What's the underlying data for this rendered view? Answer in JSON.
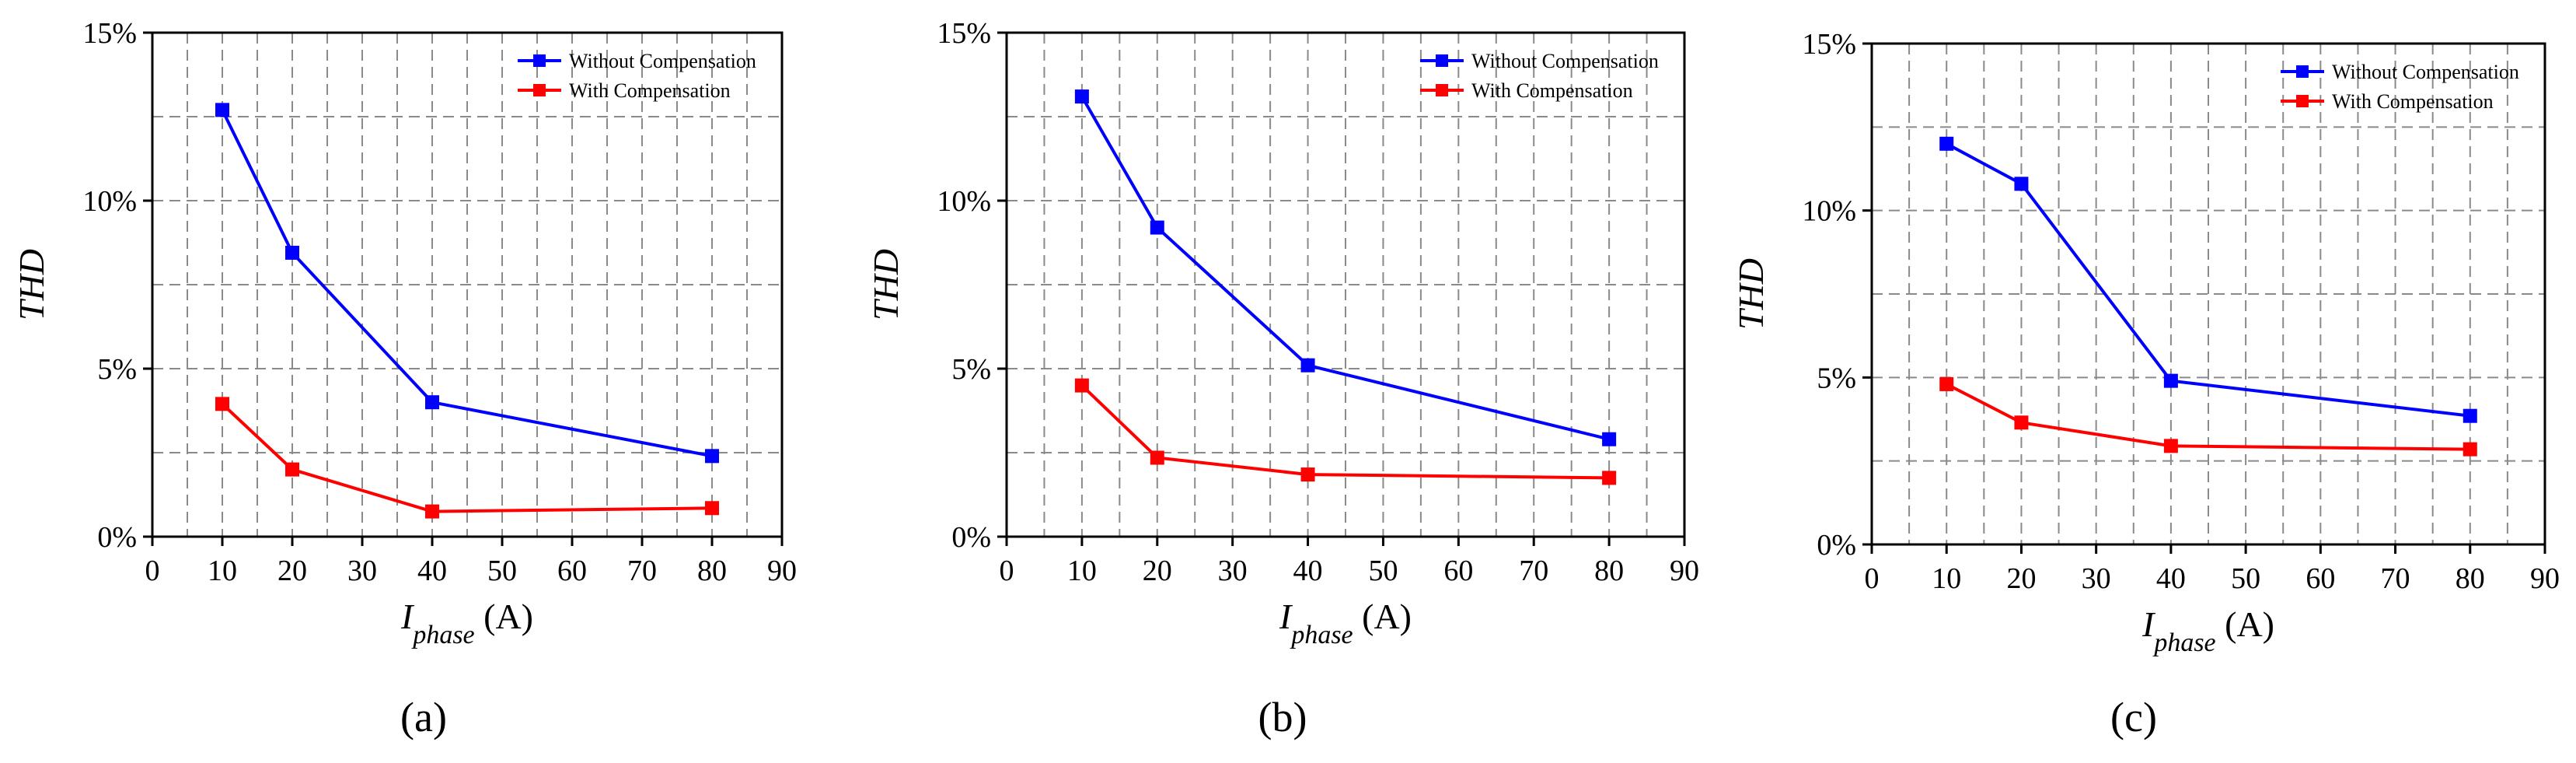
{
  "chart_data": [
    {
      "type": "line",
      "caption": "(a)",
      "x": [
        10,
        20,
        40,
        80
      ],
      "series": [
        {
          "name": "Without Compensation",
          "color": "#0000ff",
          "values": [
            12.7,
            8.45,
            4.0,
            2.4
          ]
        },
        {
          "name": "With Compensation",
          "color": "#ff0000",
          "values": [
            3.95,
            2.0,
            0.75,
            0.85
          ]
        }
      ],
      "xlabel_main": "I",
      "xlabel_sub": "phase",
      "xlabel_unit": " (A)",
      "ylabel": "THD",
      "xlim": [
        0,
        90
      ],
      "ylim": [
        0,
        15
      ],
      "xticks": [
        0,
        10,
        20,
        30,
        40,
        50,
        60,
        70,
        80,
        90
      ],
      "xtick_labels": [
        "0",
        "10",
        "20",
        "30",
        "40",
        "50",
        "60",
        "70",
        "80",
        "90"
      ],
      "yticks": [
        0,
        5,
        10,
        15
      ],
      "ytick_labels": [
        "0%",
        "5%",
        "10%",
        "15%"
      ],
      "legend": "top-right",
      "grid": true
    },
    {
      "type": "line",
      "caption": "(b)",
      "x": [
        10,
        20,
        40,
        80
      ],
      "series": [
        {
          "name": "Without Compensation",
          "color": "#0000ff",
          "values": [
            13.1,
            9.2,
            5.1,
            2.9
          ]
        },
        {
          "name": "With Compensation",
          "color": "#ff0000",
          "values": [
            4.5,
            2.35,
            1.85,
            1.75
          ]
        }
      ],
      "xlabel_main": "I",
      "xlabel_sub": "phase",
      "xlabel_unit": " (A)",
      "ylabel": "THD",
      "xlim": [
        0,
        90
      ],
      "ylim": [
        0,
        15
      ],
      "xticks": [
        0,
        10,
        20,
        30,
        40,
        50,
        60,
        70,
        80,
        90
      ],
      "xtick_labels": [
        "0",
        "10",
        "20",
        "30",
        "40",
        "50",
        "60",
        "70",
        "80",
        "90"
      ],
      "yticks": [
        0,
        5,
        10,
        15
      ],
      "ytick_labels": [
        "0%",
        "5%",
        "10%",
        "15%"
      ],
      "legend": "top-right",
      "grid": true
    },
    {
      "type": "line",
      "caption": "(c)",
      "x": [
        10,
        20,
        40,
        80
      ],
      "series": [
        {
          "name": "Without Compensation",
          "color": "#0000ff",
          "values": [
            12.0,
            10.8,
            4.9,
            3.85
          ]
        },
        {
          "name": "With Compensation",
          "color": "#ff0000",
          "values": [
            4.8,
            3.65,
            2.95,
            2.85
          ]
        }
      ],
      "xlabel_main": "I",
      "xlabel_sub": "phase",
      "xlabel_unit": " (A)",
      "ylabel": "THD",
      "xlim": [
        0,
        90
      ],
      "ylim": [
        0,
        15
      ],
      "xticks": [
        0,
        10,
        20,
        30,
        40,
        50,
        60,
        70,
        80,
        90
      ],
      "xtick_labels": [
        "0",
        "10",
        "20",
        "30",
        "40",
        "50",
        "60",
        "70",
        "80",
        "90"
      ],
      "yticks": [
        0,
        5,
        10,
        15
      ],
      "ytick_labels": [
        "0%",
        "5%",
        "10%",
        "15%"
      ],
      "legend": "top-right",
      "grid": true
    }
  ]
}
